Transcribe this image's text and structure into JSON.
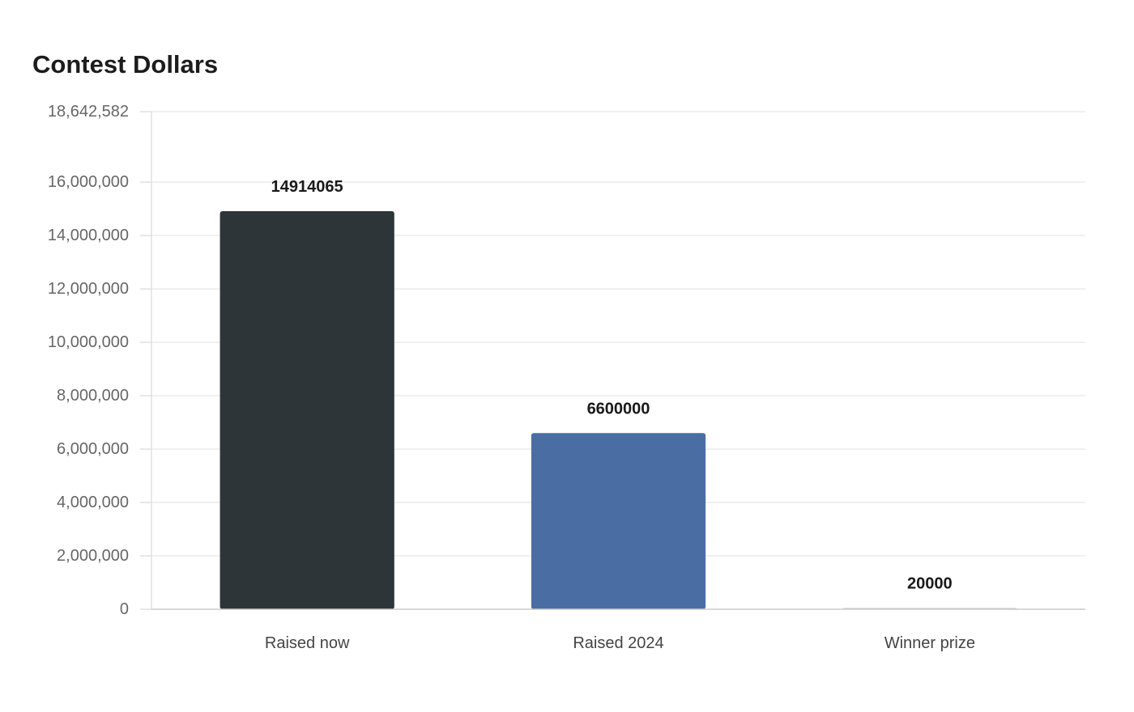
{
  "chart_data": {
    "type": "bar",
    "title": "Contest Dollars",
    "xlabel": "",
    "ylabel": "",
    "categories": [
      "Raised now",
      "Raised 2024",
      "Winner prize"
    ],
    "values": [
      14914065,
      6600000,
      20000
    ],
    "value_labels": [
      "14914065",
      "6600000",
      "20000"
    ],
    "colors": [
      "#2e3538",
      "#4a6ea3",
      "#c4c4c4"
    ],
    "ylim": [
      0,
      18642582
    ],
    "yticks": [
      0,
      2000000,
      4000000,
      6000000,
      8000000,
      10000000,
      12000000,
      14000000,
      16000000,
      18642582
    ],
    "ytick_labels": [
      "0",
      "2,000,000",
      "4,000,000",
      "6,000,000",
      "8,000,000",
      "10,000,000",
      "12,000,000",
      "14,000,000",
      "16,000,000",
      "18,642,582"
    ],
    "grid": true,
    "legend": "none"
  }
}
